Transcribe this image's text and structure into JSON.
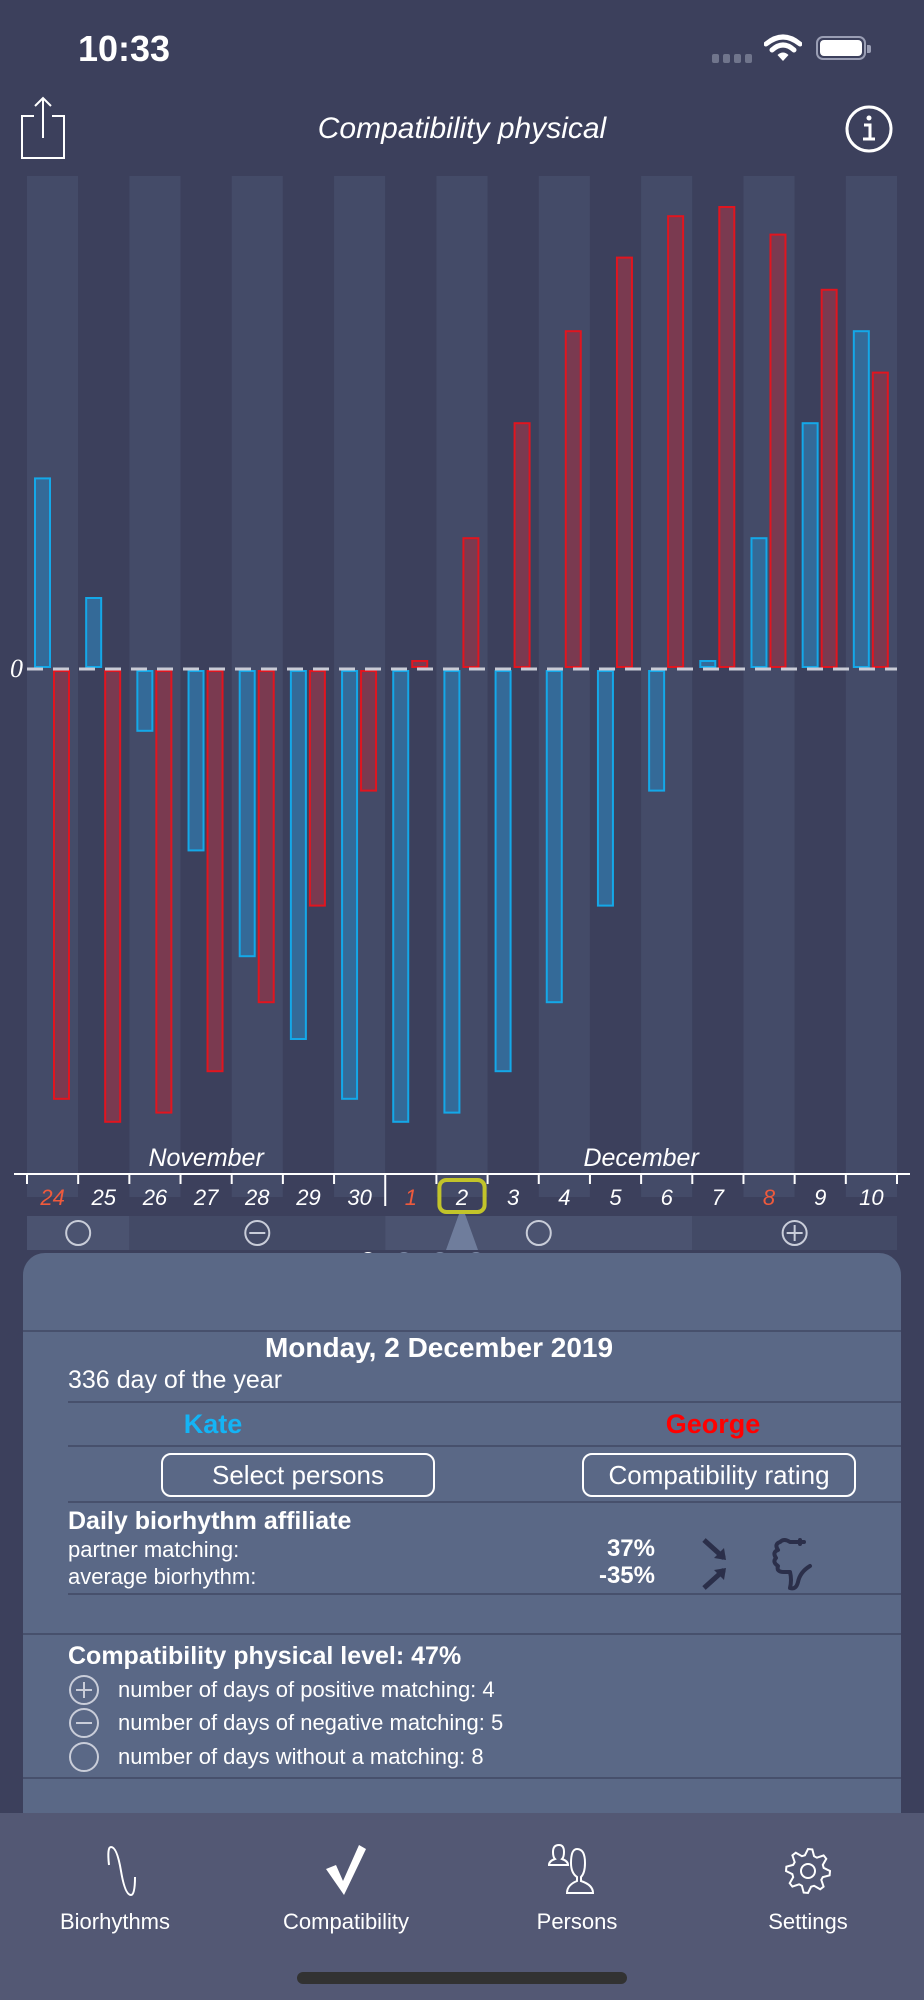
{
  "status_bar": {
    "time": "10:33"
  },
  "header": {
    "title": "Compatibility physical",
    "share_icon": "share-icon",
    "info_icon": "info-icon"
  },
  "colors": {
    "person1": "#14a8e8",
    "person2": "#e1151f",
    "weekend": "#ef5a3c",
    "selected": "#c2c42a",
    "background": "#3c405c",
    "panel": "#5a6886"
  },
  "chart_data": {
    "type": "bar",
    "title": "Compatibility physical",
    "zero_label": "0",
    "ylim": [
      -100,
      100
    ],
    "months": [
      {
        "label": "November",
        "from": 0,
        "to": 6
      },
      {
        "label": "December",
        "from": 7,
        "to": 16
      }
    ],
    "categories": [
      "24",
      "25",
      "26",
      "27",
      "28",
      "29",
      "30",
      "1",
      "2",
      "3",
      "4",
      "5",
      "6",
      "7",
      "8",
      "9",
      "10"
    ],
    "weekend_indices": [
      0,
      7,
      14
    ],
    "selected_index": 8,
    "series": [
      {
        "name": "Kate",
        "values": [
          41,
          15,
          -13,
          -39,
          -62,
          -80,
          -93,
          -98,
          -96,
          -87,
          -72,
          -51,
          -26,
          1,
          28,
          53,
          73
        ]
      },
      {
        "name": "George",
        "values": [
          -93,
          -98,
          -96,
          -87,
          -72,
          -51,
          -26,
          1,
          28,
          53,
          73,
          89,
          98,
          100,
          94,
          82,
          64
        ]
      }
    ],
    "matching_segments": [
      {
        "type": "none",
        "from": 0,
        "to": 1
      },
      {
        "type": "negative",
        "from": 2,
        "to": 6
      },
      {
        "type": "none",
        "from": 7,
        "to": 12
      },
      {
        "type": "positive",
        "from": 13,
        "to": 16
      }
    ]
  },
  "pager": {
    "count": 4,
    "active": 0
  },
  "panel": {
    "date": "Monday, 2 December 2019",
    "day_of_year": "336 day of the year",
    "person1": "Kate",
    "person2": "George",
    "select_persons": "Select persons",
    "compatibility_rating": "Compatibility rating",
    "daily_title": "Daily biorhythm affiliate",
    "partner_matching_label": "partner matching:",
    "partner_matching_value": "37%",
    "average_label": "average biorhythm:",
    "average_value": "-35%",
    "converge_icon": "converging-arrows-icon",
    "thumb_icon": "thumbs-down-icon",
    "level_title": "Compatibility physical level: 47%",
    "positive_days": "number of days of positive matching: 4",
    "negative_days": "number of days of negative matching: 5",
    "none_days": "number of days without a matching: 8"
  },
  "tabbar": {
    "items": [
      {
        "label": "Biorhythms",
        "icon": "sine-wave-icon"
      },
      {
        "label": "Compatibility",
        "icon": "checkmark-icon",
        "active": true
      },
      {
        "label": "Persons",
        "icon": "persons-icon"
      },
      {
        "label": "Settings",
        "icon": "gear-icon"
      }
    ]
  }
}
